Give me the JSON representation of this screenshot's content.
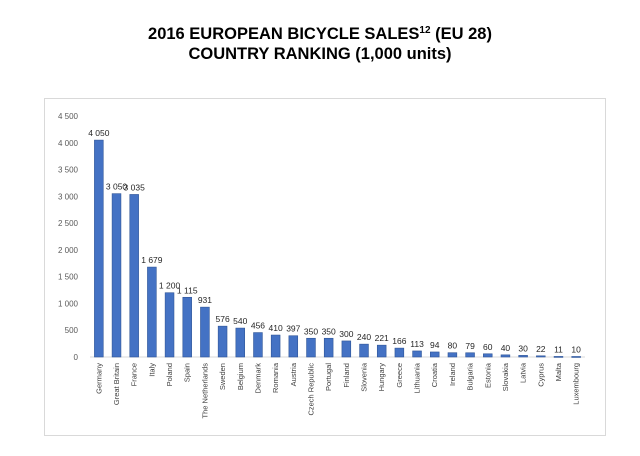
{
  "header": {
    "title_line1": "2016 EUROPEAN BICYCLE SALES",
    "title_sup": "12",
    "title_line1_suffix": " (EU 28)",
    "title_line2": "COUNTRY RANKING (1,000 units)"
  },
  "chart_data": {
    "type": "bar",
    "title": "2016 EUROPEAN BICYCLE SALES12 (EU 28) COUNTRY RANKING (1,000 units)",
    "xlabel": "",
    "ylabel": "",
    "ylim": [
      0,
      4500
    ],
    "yticks": [
      0,
      500,
      1000,
      1500,
      2000,
      2500,
      3000,
      3500,
      4000,
      4500
    ],
    "ytick_labels": [
      "0",
      "500",
      "1 000",
      "1 500",
      "2 000",
      "2 500",
      "3 000",
      "3 500",
      "4 000",
      "4 500"
    ],
    "grid": false,
    "legend": "none",
    "bar_color": "#4472c4",
    "bar_edge_color": "#2f5597",
    "categories": [
      "Germany",
      "Great Britain",
      "France",
      "Italy",
      "Poland",
      "Spain",
      "The Netherlands",
      "Sweden",
      "Belgium",
      "Denmark",
      "Romania",
      "Austria",
      "Czech Republic",
      "Portugal",
      "Finland",
      "Slovenia",
      "Hungary",
      "Greece",
      "Lithuania",
      "Croatia",
      "Ireland",
      "Bulgaria",
      "Estonia",
      "Slovakia",
      "Latvia",
      "Cyprus",
      "Malta",
      "Luxembourg"
    ],
    "values": [
      4050,
      3050,
      3035,
      1679,
      1200,
      1115,
      931,
      576,
      540,
      456,
      410,
      397,
      350,
      350,
      300,
      240,
      221,
      166,
      113,
      94,
      80,
      79,
      60,
      40,
      30,
      22,
      11,
      10
    ],
    "value_labels": [
      "4 050",
      "3 050",
      "3 035",
      "1 679",
      "1 200",
      "1 115",
      "931",
      "576",
      "540",
      "456",
      "410",
      "397",
      "350",
      "350",
      "300",
      "240",
      "221",
      "166",
      "113",
      "94",
      "80",
      "79",
      "60",
      "40",
      "30",
      "22",
      "11",
      "10"
    ]
  }
}
